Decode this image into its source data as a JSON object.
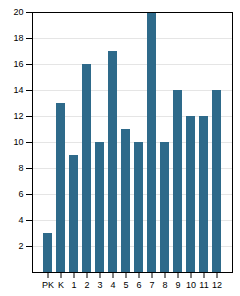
{
  "chart_data": {
    "type": "bar",
    "categories": [
      "PK",
      "K",
      "1",
      "2",
      "3",
      "4",
      "5",
      "6",
      "7",
      "8",
      "9",
      "10",
      "11",
      "12"
    ],
    "values": [
      3,
      13,
      9,
      16,
      10,
      17,
      11,
      10,
      20,
      10,
      14,
      12,
      12,
      14
    ],
    "color": "#2e6a8a",
    "ylim": [
      0,
      20
    ],
    "yticks": [
      2,
      4,
      6,
      8,
      10,
      12,
      14,
      16,
      18,
      20
    ],
    "grid": true
  }
}
